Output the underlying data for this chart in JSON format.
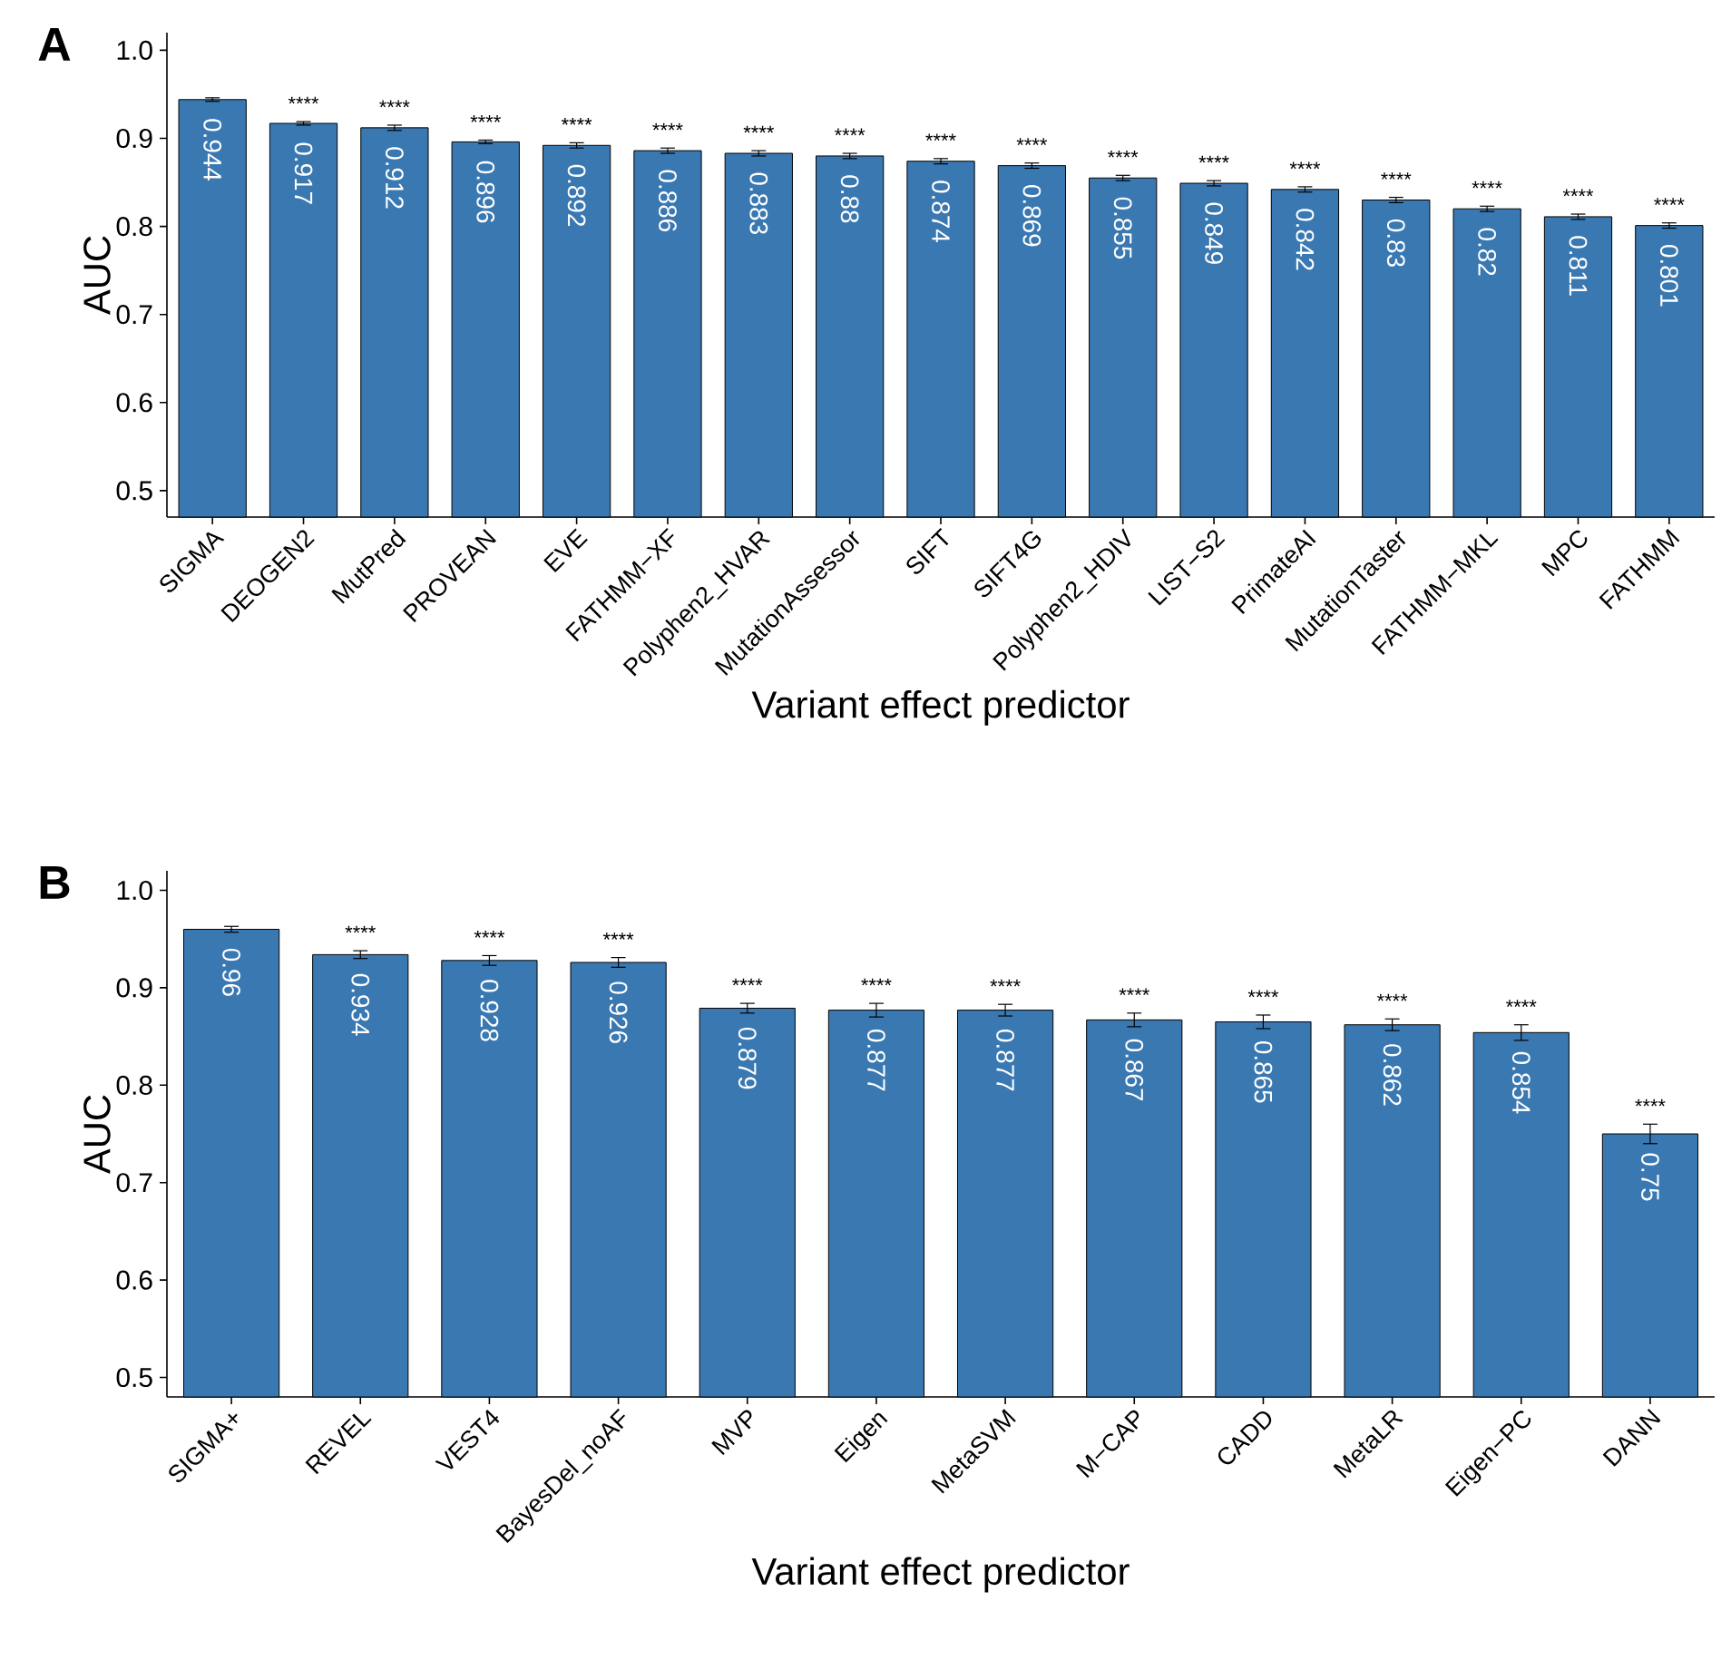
{
  "chart_data": [
    {
      "type": "bar",
      "title": "A",
      "xlabel": "Variant effect predictor",
      "ylabel": "AUC",
      "categories": [
        "SIGMA",
        "DEOGEN2",
        "MutPred",
        "PROVEAN",
        "EVE",
        "FATHMM−XF",
        "Polyphen2_HVAR",
        "MutationAssessor",
        "SIFT",
        "SIFT4G",
        "Polyphen2_HDIV",
        "LIST−S2",
        "PrimateAI",
        "MutationTaster",
        "FATHMM−MKL",
        "MPC",
        "FATHMM"
      ],
      "series": [
        {
          "color": "#3a78b2",
          "values": [
            0.944,
            0.917,
            0.912,
            0.896,
            0.892,
            0.886,
            0.883,
            0.88,
            0.874,
            0.869,
            0.855,
            0.849,
            0.842,
            0.83,
            0.82,
            0.811,
            0.801
          ],
          "errors": [
            0.002,
            0.002,
            0.003,
            0.002,
            0.003,
            0.003,
            0.003,
            0.003,
            0.003,
            0.003,
            0.003,
            0.003,
            0.003,
            0.003,
            0.003,
            0.003,
            0.003
          ]
        }
      ],
      "data_labels": true,
      "ylim": [
        0.47,
        1.02
      ],
      "yticks": [
        0.5,
        0.6,
        0.7,
        0.8,
        0.9,
        {
          "value": 1.0,
          "label": "1.0"
        }
      ],
      "annotations": [
        {
          "text": "****",
          "x": "DEOGEN2",
          "y": 0.917
        },
        {
          "text": "****",
          "x": "MutPred",
          "y": 0.912
        },
        {
          "text": "****",
          "x": "PROVEAN",
          "y": 0.896
        },
        {
          "text": "****",
          "x": "EVE",
          "y": 0.892
        },
        {
          "text": "****",
          "x": "FATHMM−XF",
          "y": 0.886
        },
        {
          "text": "****",
          "x": "Polyphen2_HVAR",
          "y": 0.883
        },
        {
          "text": "****",
          "x": "MutationAssessor",
          "y": 0.88
        },
        {
          "text": "****",
          "x": "SIFT",
          "y": 0.874
        },
        {
          "text": "****",
          "x": "SIFT4G",
          "y": 0.869
        },
        {
          "text": "****",
          "x": "Polyphen2_HDIV",
          "y": 0.855
        },
        {
          "text": "****",
          "x": "LIST−S2",
          "y": 0.849
        },
        {
          "text": "****",
          "x": "PrimateAI",
          "y": 0.842
        },
        {
          "text": "****",
          "x": "MutationTaster",
          "y": 0.83
        },
        {
          "text": "****",
          "x": "FATHMM−MKL",
          "y": 0.82
        },
        {
          "text": "****",
          "x": "MPC",
          "y": 0.811
        },
        {
          "text": "****",
          "x": "FATHMM",
          "y": 0.801
        }
      ]
    },
    {
      "type": "bar",
      "title": "B",
      "xlabel": "Variant effect predictor",
      "ylabel": "AUC",
      "categories": [
        "SIGMA+",
        "REVEL",
        "VEST4",
        "BayesDel_noAF",
        "MVP",
        "Eigen",
        "MetaSVM",
        "M−CAP",
        "CADD",
        "MetaLR",
        "Eigen−PC",
        "DANN"
      ],
      "series": [
        {
          "color": "#3a78b2",
          "values": [
            0.96,
            0.934,
            0.928,
            0.926,
            0.879,
            0.877,
            0.877,
            0.867,
            0.865,
            0.862,
            0.854,
            0.75
          ],
          "errors": [
            0.003,
            0.004,
            0.005,
            0.005,
            0.005,
            0.007,
            0.006,
            0.007,
            0.007,
            0.006,
            0.008,
            0.01
          ]
        }
      ],
      "data_labels": true,
      "ylim": [
        0.48,
        1.02
      ],
      "yticks": [
        0.5,
        0.6,
        0.7,
        0.8,
        0.9,
        {
          "value": 1.0,
          "label": "1.0"
        }
      ],
      "annotations": [
        {
          "text": "****",
          "x": "REVEL",
          "y": 0.934
        },
        {
          "text": "****",
          "x": "VEST4",
          "y": 0.928
        },
        {
          "text": "****",
          "x": "BayesDel_noAF",
          "y": 0.926
        },
        {
          "text": "****",
          "x": "MVP",
          "y": 0.879
        },
        {
          "text": "****",
          "x": "Eigen",
          "y": 0.877
        },
        {
          "text": "****",
          "x": "MetaSVM",
          "y": 0.877
        },
        {
          "text": "****",
          "x": "M−CAP",
          "y": 0.867
        },
        {
          "text": "****",
          "x": "CADD",
          "y": 0.865
        },
        {
          "text": "****",
          "x": "MetaLR",
          "y": 0.862
        },
        {
          "text": "****",
          "x": "Eigen−PC",
          "y": 0.854
        },
        {
          "text": "****",
          "x": "DANN",
          "y": 0.75
        }
      ]
    }
  ]
}
